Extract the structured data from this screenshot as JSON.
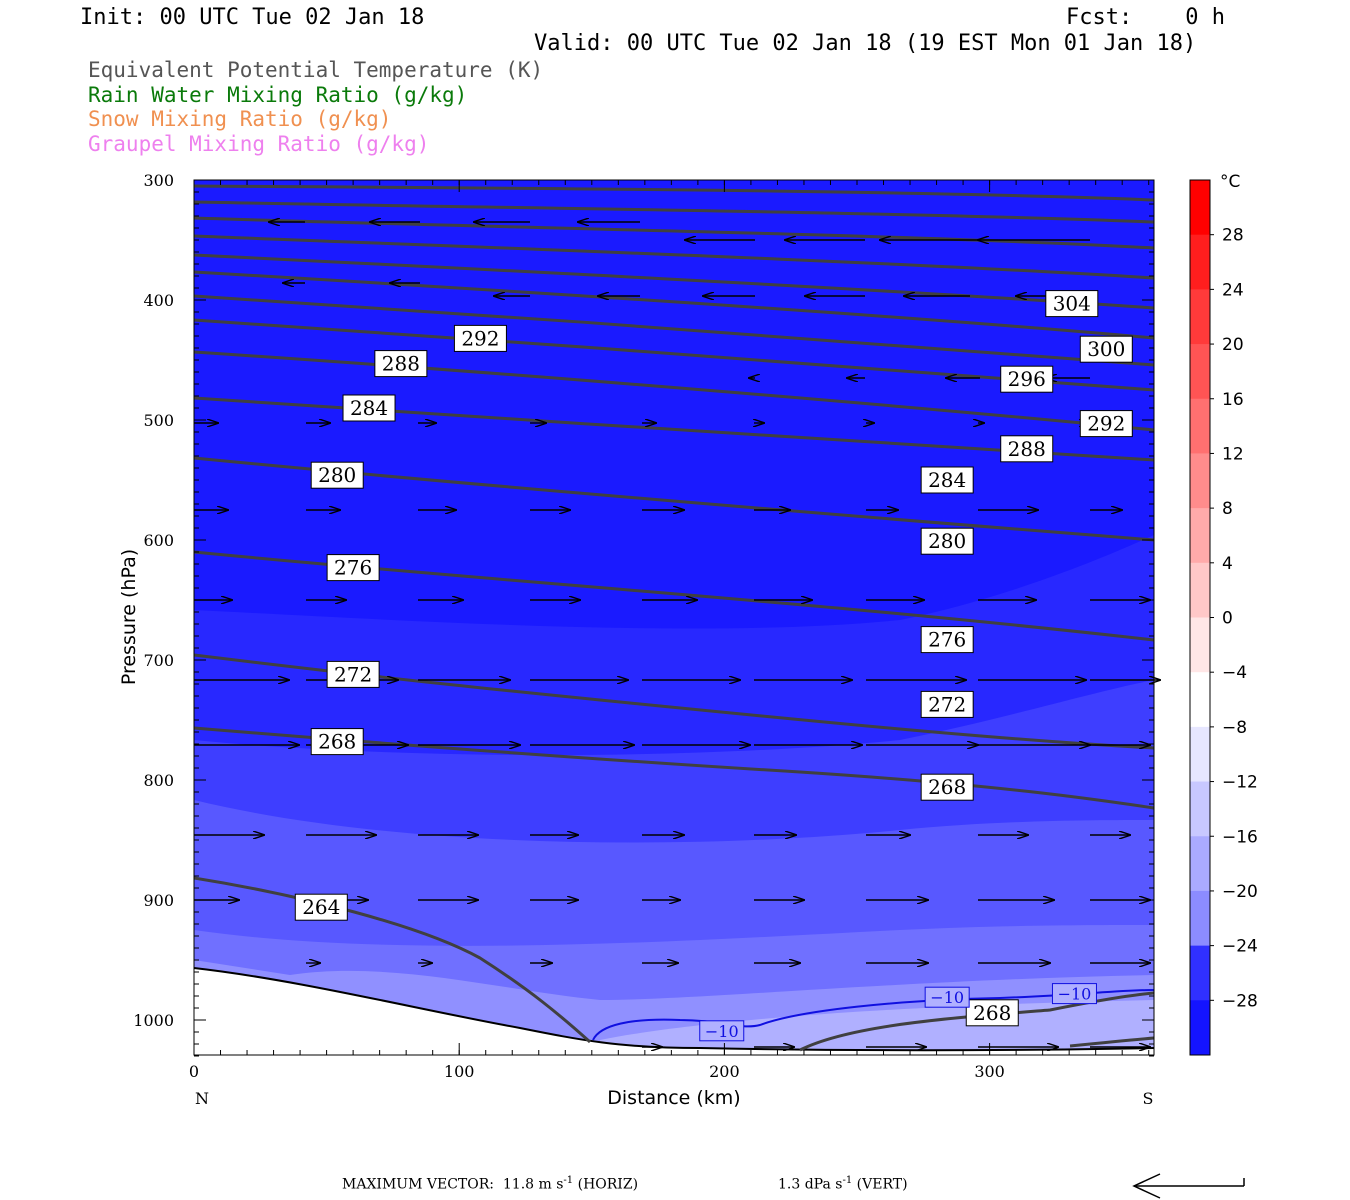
{
  "header": {
    "init": "Init: 00 UTC Tue 02 Jan 18",
    "fcst": "Fcst:    0 h",
    "valid": "Valid: 00 UTC Tue 02 Jan 18 (19 EST Mon 01 Jan 18)"
  },
  "fields": [
    {
      "label": "Equivalent Potential Temperature (K)",
      "color": "#555555"
    },
    {
      "label": "Rain Water Mixing Ratio (g/kg)",
      "color": "#0a7a0a"
    },
    {
      "label": "Snow Mixing Ratio (g/kg)",
      "color": "#f09050"
    },
    {
      "label": "Graupel Mixing Ratio (g/kg)",
      "color": "#ee80ee"
    }
  ],
  "chart_data": {
    "type": "contour",
    "xlabel": "Distance (km)",
    "ylabel": "Pressure (hPa)",
    "xlim": [
      0,
      362
    ],
    "ylim": [
      1030,
      300
    ],
    "x_ticks": [
      0,
      100,
      200,
      300
    ],
    "y_ticks": [
      300,
      400,
      500,
      600,
      700,
      800,
      900,
      1000
    ],
    "x_end_labels": {
      "left": "N",
      "right": "S"
    },
    "colorbar": {
      "unit": "°C",
      "labels": [
        "28",
        "24",
        "20",
        "16",
        "12",
        "8",
        "4",
        "0",
        "−4",
        "−8",
        "−12",
        "−16",
        "−20",
        "−24",
        "−28"
      ],
      "values": [
        28,
        24,
        20,
        16,
        12,
        8,
        4,
        0,
        -4,
        -8,
        -12,
        -16,
        -20,
        -24,
        -28
      ],
      "range": [
        -32,
        32
      ]
    },
    "theta_e_contours": [
      {
        "label": "304",
        "x": 331,
        "p": 403
      },
      {
        "label": "300",
        "x": 344,
        "p": 441
      },
      {
        "label": "296",
        "x": 314,
        "p": 466
      },
      {
        "label": "292",
        "x": 108,
        "p": 432
      },
      {
        "label": "292",
        "x": 344,
        "p": 503
      },
      {
        "label": "288",
        "x": 78,
        "p": 453
      },
      {
        "label": "288",
        "x": 314,
        "p": 524
      },
      {
        "label": "284",
        "x": 66,
        "p": 490
      },
      {
        "label": "284",
        "x": 284,
        "p": 550
      },
      {
        "label": "280",
        "x": 54,
        "p": 546
      },
      {
        "label": "280",
        "x": 284,
        "p": 601
      },
      {
        "label": "276",
        "x": 60,
        "p": 623
      },
      {
        "label": "276",
        "x": 284,
        "p": 683
      },
      {
        "label": "272",
        "x": 60,
        "p": 712
      },
      {
        "label": "272",
        "x": 284,
        "p": 737
      },
      {
        "label": "268",
        "x": 54,
        "p": 768
      },
      {
        "label": "268",
        "x": 284,
        "p": 806
      },
      {
        "label": "264",
        "x": 48,
        "p": 906
      },
      {
        "label": "268",
        "x": 301,
        "p": 994
      }
    ],
    "temperature_contour_labels": [
      {
        "label": "−10",
        "x": 199,
        "p": 1009
      },
      {
        "label": "−10",
        "x": 284,
        "p": 981
      },
      {
        "label": "−10",
        "x": 332,
        "p": 978
      }
    ],
    "footer": {
      "max_vector": "MAXIMUM VECTOR:  11.8 m s",
      "horiz_exp": "-1",
      "horiz_tail": " (HORIZ)",
      "vert_val": "1.3 dPa s",
      "vert_exp": "-1",
      "vert_tail": " (VERT)"
    }
  }
}
